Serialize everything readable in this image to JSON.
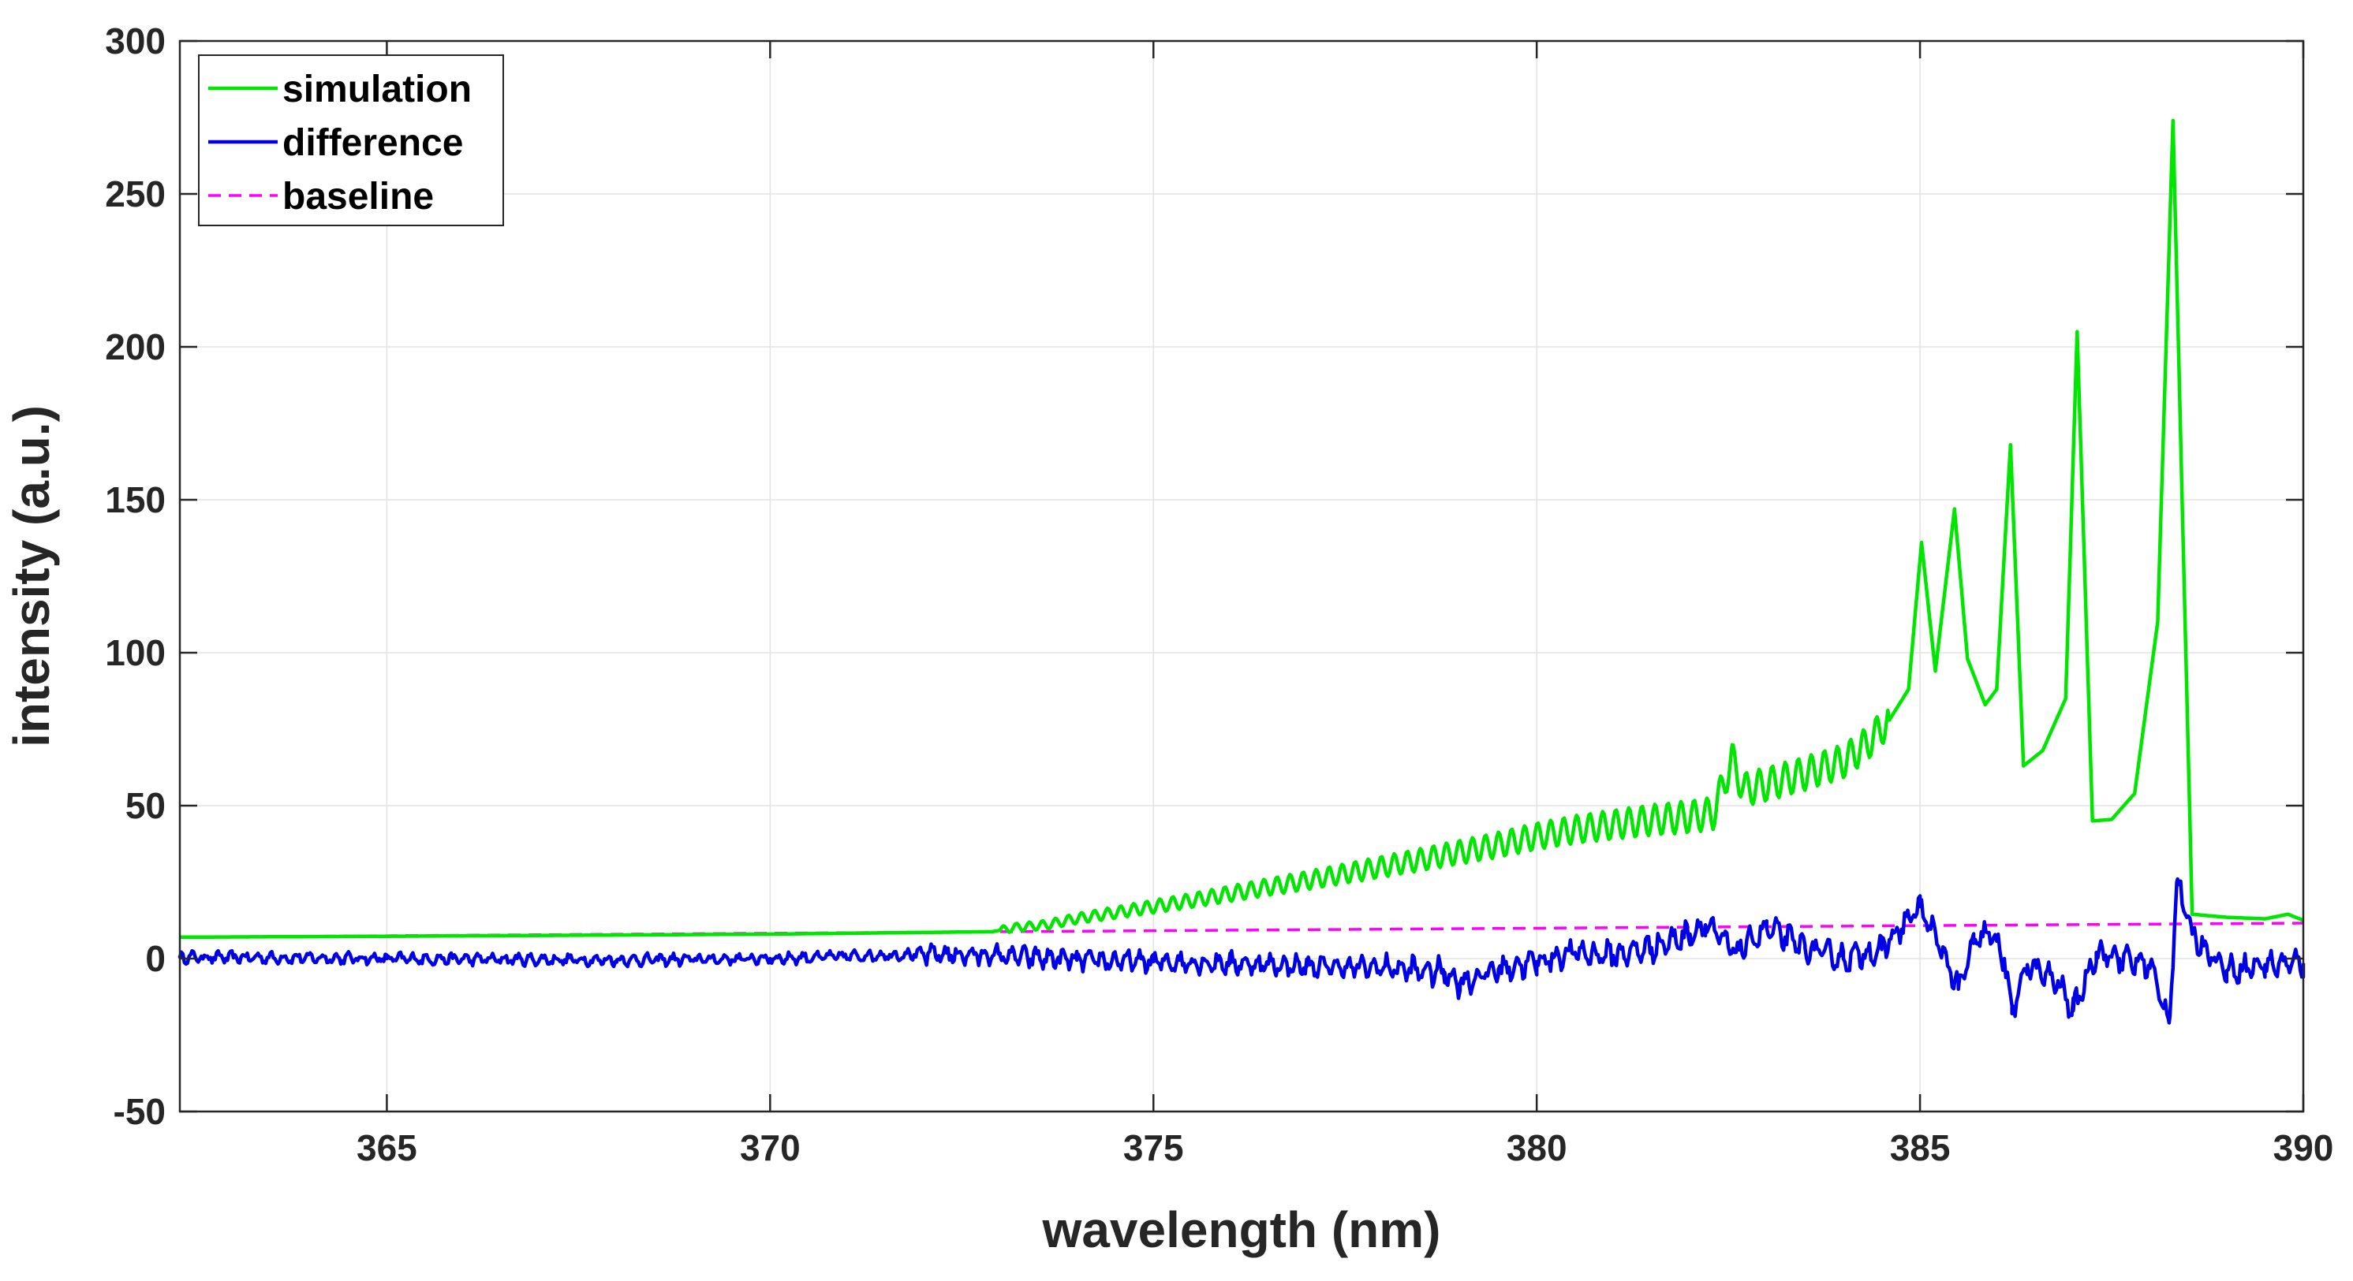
{
  "chart_data": {
    "type": "line",
    "xlabel": "wavelength (nm)",
    "ylabel": "intensity (a.u.)",
    "xlim": [
      362.3,
      390
    ],
    "ylim": [
      -50,
      300
    ],
    "xticks": [
      365,
      370,
      375,
      380,
      385,
      390
    ],
    "yticks": [
      -50,
      0,
      50,
      100,
      150,
      200,
      250,
      300
    ],
    "grid": true,
    "legend_position": "top-left",
    "series": [
      {
        "name": "simulation",
        "color": "#00e600",
        "style": "solid",
        "points": [
          [
            362.3,
            7.0
          ],
          [
            365.0,
            7.3
          ],
          [
            368.0,
            7.7
          ],
          [
            370.0,
            8.0
          ],
          [
            372.9,
            8.8
          ],
          [
            373.2,
            10.2
          ],
          [
            373.6,
            11.0
          ],
          [
            374.0,
            13.1
          ],
          [
            374.5,
            15.0
          ],
          [
            375.0,
            17.0
          ],
          [
            375.5,
            19.0
          ],
          [
            376.0,
            21.2
          ],
          [
            376.5,
            23.4
          ],
          [
            377.0,
            25.5
          ],
          [
            377.5,
            27.8
          ],
          [
            378.0,
            30.1
          ],
          [
            378.5,
            32.4
          ],
          [
            379.0,
            34.8
          ],
          [
            379.5,
            37.2
          ],
          [
            380.0,
            40.0
          ],
          [
            380.5,
            42.2
          ],
          [
            381.0,
            43.8
          ],
          [
            381.5,
            45.3
          ],
          [
            382.0,
            46.4
          ],
          [
            382.3,
            47.4
          ],
          [
            382.55,
            65.0
          ],
          [
            382.7,
            55.2
          ],
          [
            383.0,
            57.0
          ],
          [
            383.5,
            60.5
          ],
          [
            384.0,
            64.5
          ],
          [
            384.3,
            70.0
          ],
          [
            384.6,
            78.0
          ],
          [
            384.85,
            88.0
          ],
          [
            385.02,
            136.0
          ],
          [
            385.2,
            94.0
          ],
          [
            385.45,
            147.0
          ],
          [
            385.62,
            98.0
          ],
          [
            385.85,
            83.0
          ],
          [
            386.0,
            88.0
          ],
          [
            386.18,
            168.0
          ],
          [
            386.35,
            63.0
          ],
          [
            386.6,
            68.0
          ],
          [
            386.9,
            85.0
          ],
          [
            387.05,
            205.0
          ],
          [
            387.25,
            45.0
          ],
          [
            387.5,
            45.5
          ],
          [
            387.8,
            54.0
          ],
          [
            388.1,
            110.0
          ],
          [
            388.3,
            274.0
          ],
          [
            388.55,
            14.5
          ],
          [
            389.0,
            13.5
          ],
          [
            389.5,
            13.0
          ],
          [
            389.8,
            14.5
          ],
          [
            390.0,
            12.5
          ]
        ]
      },
      {
        "name": "difference",
        "color": "#0000e6",
        "style": "solid",
        "points": [
          [
            362.3,
            0.5
          ],
          [
            365.0,
            0.0
          ],
          [
            368.0,
            -0.5
          ],
          [
            370.0,
            0.0
          ],
          [
            372.0,
            1.5
          ],
          [
            373.0,
            1.0
          ],
          [
            374.0,
            -0.5
          ],
          [
            375.0,
            -1.0
          ],
          [
            376.0,
            -1.5
          ],
          [
            377.0,
            -2.5
          ],
          [
            378.0,
            -3.0
          ],
          [
            378.8,
            -4.5
          ],
          [
            379.0,
            -8.0
          ],
          [
            379.5,
            -3.5
          ],
          [
            380.0,
            -1.0
          ],
          [
            380.5,
            2.0
          ],
          [
            381.0,
            1.0
          ],
          [
            381.5,
            3.5
          ],
          [
            382.0,
            8.0
          ],
          [
            382.2,
            11.0
          ],
          [
            382.6,
            2.0
          ],
          [
            383.0,
            10.0
          ],
          [
            383.5,
            3.5
          ],
          [
            384.0,
            0.0
          ],
          [
            384.5,
            3.0
          ],
          [
            385.0,
            17.0
          ],
          [
            385.3,
            2.0
          ],
          [
            385.5,
            -10.0
          ],
          [
            385.7,
            5.0
          ],
          [
            385.9,
            8.5
          ],
          [
            386.1,
            0.0
          ],
          [
            386.2,
            -18.0
          ],
          [
            386.4,
            -2.0
          ],
          [
            386.8,
            -8.0
          ],
          [
            387.0,
            -17.0
          ],
          [
            387.3,
            2.0
          ],
          [
            387.6,
            0.0
          ],
          [
            388.0,
            -2.0
          ],
          [
            388.25,
            -21.0
          ],
          [
            388.35,
            25.0
          ],
          [
            388.55,
            8.0
          ],
          [
            389.0,
            -4.0
          ],
          [
            389.5,
            -2.0
          ],
          [
            390.0,
            -1.5
          ]
        ],
        "noise_amplitude": 3.5
      },
      {
        "name": "baseline",
        "color": "#ff00ff",
        "style": "dashed",
        "points": [
          [
            362.3,
            7.0
          ],
          [
            390.0,
            11.6
          ]
        ]
      }
    ]
  }
}
